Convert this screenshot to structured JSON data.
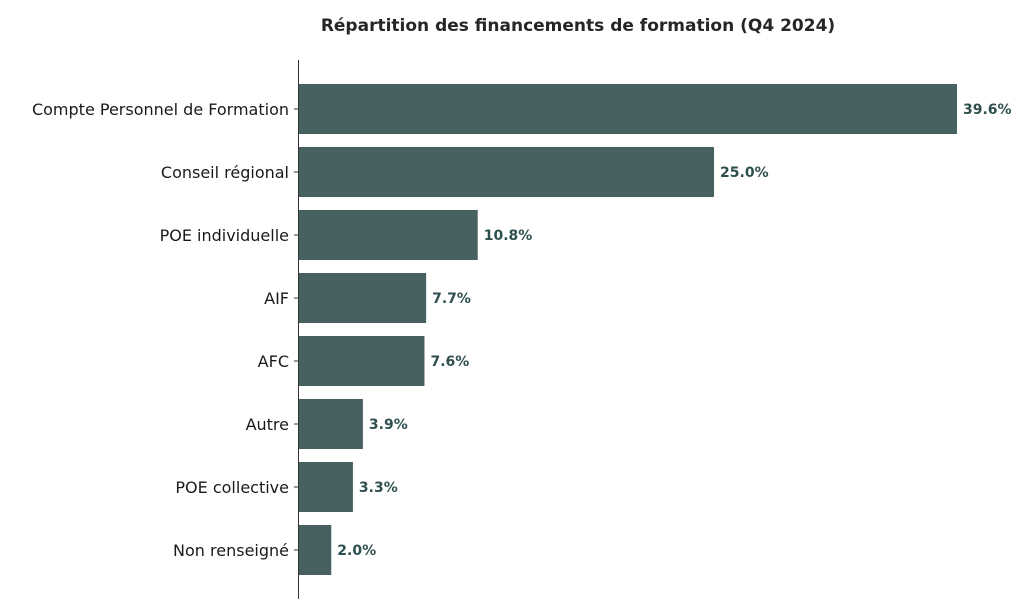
{
  "chart_data": {
    "type": "bar",
    "orientation": "horizontal",
    "title": "Répartition des financements de formation (Q4 2024)",
    "xlabel": "",
    "ylabel": "",
    "categories": [
      "Compte Personnel de Formation",
      "Conseil régional",
      "POE individuelle",
      "AIF",
      "AFC",
      "Autre",
      "POE collective",
      "Non renseigné"
    ],
    "values": [
      39.6,
      25.0,
      10.8,
      7.7,
      7.6,
      3.9,
      3.3,
      2.0
    ],
    "value_labels": [
      "39.6%",
      "25.0%",
      "10.8%",
      "7.7%",
      "7.6%",
      "3.9%",
      "3.3%",
      "2.0%"
    ],
    "unit": "%",
    "xlim": [
      0,
      39.6
    ],
    "grid": false,
    "bar_color": "#476160",
    "label_color": "#2f4f4f"
  }
}
